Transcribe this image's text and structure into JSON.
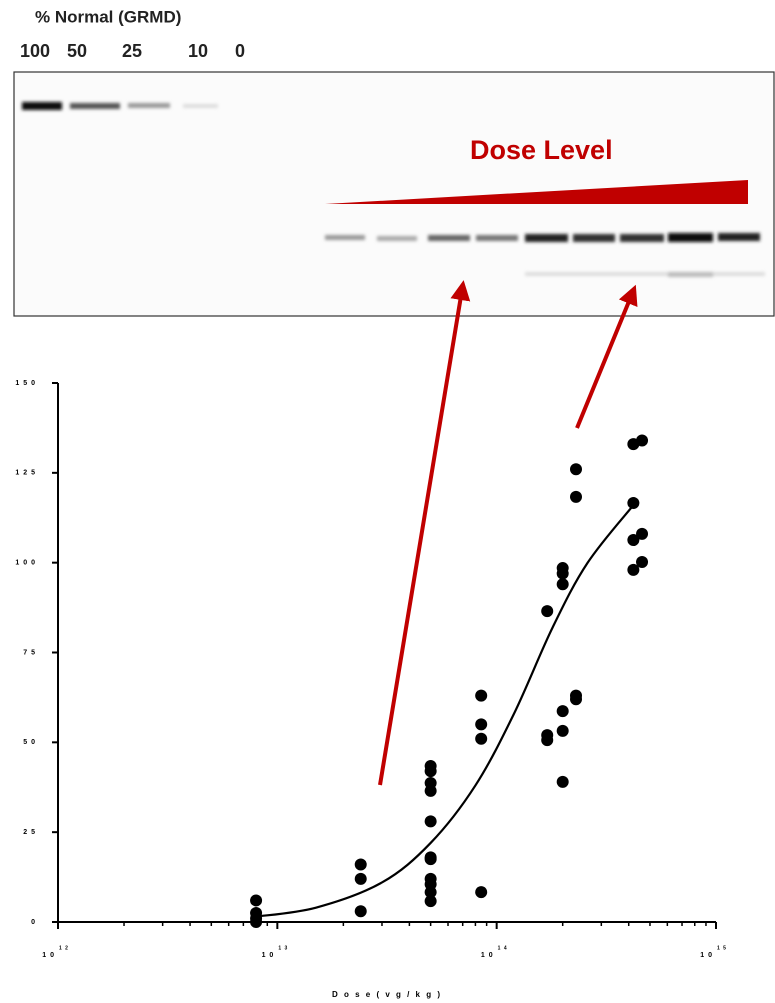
{
  "blot": {
    "title": "% Normal (GRMD)",
    "lanes": [
      "100",
      "50",
      "25",
      "10",
      "0"
    ],
    "dose_label": "Dose Level"
  },
  "chart_data": {
    "type": "scatter",
    "x_label": "D o s e  ( v g / k g )",
    "xscale": "log",
    "xlim": [
      1000000000000,
      1000000000000000
    ],
    "xticks": [
      {
        "value": 1000000000000,
        "label": "1 0",
        "superscript": "1 2"
      },
      {
        "value": 10000000000000,
        "label": "1 0",
        "superscript": "1 3"
      },
      {
        "value": 100000000000000,
        "label": "1 0",
        "superscript": "1 4"
      },
      {
        "value": 1000000000000000,
        "label": "1 0",
        "superscript": "1 5"
      }
    ],
    "ylim": [
      0,
      150
    ],
    "yticks": [
      {
        "value": 0,
        "label": "0"
      },
      {
        "value": 25,
        "label": "2 5"
      },
      {
        "value": 50,
        "label": "5 0"
      },
      {
        "value": 75,
        "label": "7 5"
      },
      {
        "value": 100,
        "label": "1 0 0"
      },
      {
        "value": 125,
        "label": "1 2 5"
      },
      {
        "value": 150,
        "label": "1 5 0"
      }
    ],
    "series": [
      {
        "color": "#000000",
        "x": [
          8000000000000,
          8000000000000,
          8000000000000,
          8000000000000,
          24000000000000,
          24000000000000,
          24000000000000,
          50000000000000,
          50000000000000,
          50000000000000,
          50000000000000,
          50000000000000,
          50000000000000,
          50000000000000,
          50000000000000,
          50000000000000,
          50000000000000,
          50000000000000,
          85000000000000,
          85000000000000,
          85000000000000,
          85000000000000,
          170000000000000,
          170000000000000,
          170000000000000,
          200000000000000,
          200000000000000,
          200000000000000,
          200000000000000,
          200000000000000,
          200000000000000,
          230000000000000,
          230000000000000,
          230000000000000,
          230000000000000,
          420000000000000,
          420000000000000,
          420000000000000,
          420000000000000,
          460000000000000,
          460000000000000,
          460000000000000
        ],
        "values": [
          6,
          2.5,
          1,
          0,
          16,
          12,
          3,
          43.4,
          42,
          38.7,
          36.5,
          28,
          18,
          17.5,
          12,
          10.5,
          8.3,
          5.8,
          63,
          55,
          51,
          8.3,
          86.5,
          52,
          50.6,
          98.5,
          97,
          94,
          58.7,
          53.2,
          39,
          126,
          118.3,
          63,
          62,
          133,
          116.6,
          106.3,
          98,
          134,
          108,
          100.2
        ]
      },
      {
        "color": "#000000",
        "kind": "curve",
        "x": [
          8000000000000,
          15000000000000,
          30000000000000,
          50000000000000,
          80000000000000,
          120000000000000,
          180000000000000,
          260000000000000,
          420000000000000
        ],
        "values": [
          1.5,
          4,
          11,
          22,
          38,
          58,
          82,
          100,
          116
        ]
      }
    ]
  }
}
